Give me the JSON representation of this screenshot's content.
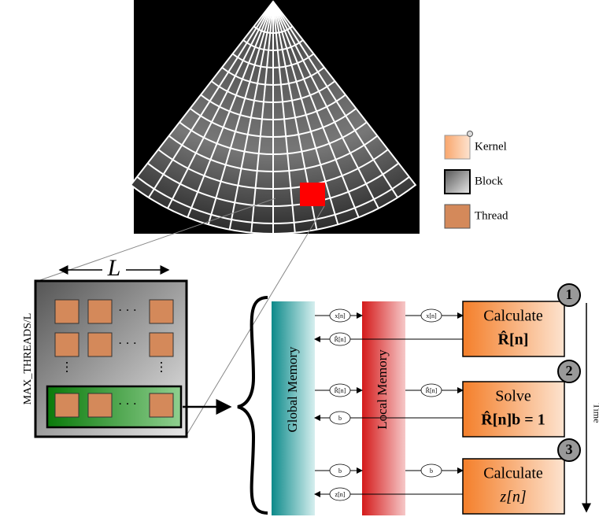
{
  "legend": [
    {
      "label": "Kernel"
    },
    {
      "label": "Block"
    },
    {
      "label": "Thread"
    }
  ],
  "block": {
    "width_label": "L",
    "height_label": "MAX_THREADS/L"
  },
  "memory": {
    "global": "Global Memory",
    "local": "Local Memory"
  },
  "time": "Time",
  "steps": [
    {
      "number": "1",
      "title": "Calculate",
      "formula": "R̂[n]"
    },
    {
      "number": "2",
      "title": "Solve",
      "formula": "R̂[n]b = 1"
    },
    {
      "number": "3",
      "title": "Calculate",
      "formula": "z[n]"
    }
  ],
  "arrows": [
    {
      "label": "x[n]"
    },
    {
      "label": "x[n]"
    },
    {
      "label": "R̂[n]"
    },
    {
      "label": "R̂[n]"
    },
    {
      "label": "R̂[n]"
    },
    {
      "label": "b"
    },
    {
      "label": "b"
    },
    {
      "label": "b"
    },
    {
      "label": "z[n]"
    }
  ]
}
